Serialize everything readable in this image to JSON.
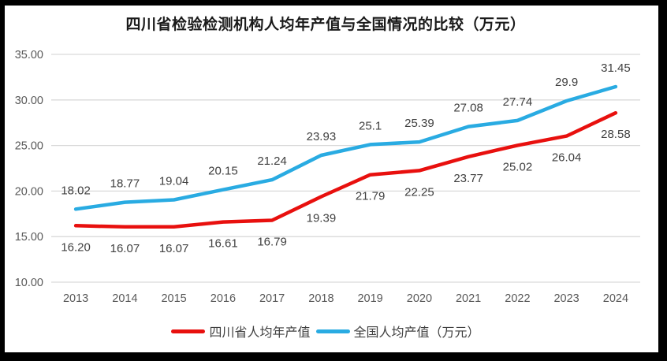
{
  "chart_data": {
    "type": "line",
    "title": "四川省检验检测机构人均年产值与全国情况的比较（万元）",
    "categories": [
      "2013",
      "2014",
      "2015",
      "2016",
      "2017",
      "2018",
      "2019",
      "2020",
      "2021",
      "2022",
      "2023",
      "2024"
    ],
    "series": [
      {
        "name": "四川省人均年产值",
        "color": "#e8100e",
        "values": [
          16.2,
          16.07,
          16.07,
          16.61,
          16.79,
          19.39,
          21.79,
          22.25,
          23.77,
          25.02,
          26.04,
          28.58
        ],
        "labels": [
          "16.20",
          "16.07",
          "16.07",
          "16.61",
          "16.79",
          "19.39",
          "21.79",
          "22.25",
          "23.77",
          "25.02",
          "26.04",
          "28.58"
        ],
        "label_position": "below"
      },
      {
        "name": "全国人均产值（万元）",
        "color": "#29abe2",
        "values": [
          18.02,
          18.77,
          19.04,
          20.15,
          21.24,
          23.93,
          25.1,
          25.39,
          27.08,
          27.74,
          29.9,
          31.45
        ],
        "labels": [
          "18.02",
          "18.77",
          "19.04",
          "20.15",
          "21.24",
          "23.93",
          "25.1",
          "25.39",
          "27.08",
          "27.74",
          "29.9",
          "31.45"
        ],
        "label_position": "above"
      }
    ],
    "ylim": [
      10,
      35
    ],
    "yticks": [
      10,
      15,
      20,
      25,
      30,
      35
    ],
    "ytick_labels": [
      "10.00",
      "15.00",
      "20.00",
      "25.00",
      "30.00",
      "35.00"
    ],
    "grid": true,
    "legend_position": "bottom"
  },
  "colors": {
    "grid": "#d9d9d9",
    "axis_text": "#595959",
    "data_label_text": "#404040",
    "title_text": "#1a1a1a",
    "frame": "#000000",
    "background": "#ffffff"
  }
}
